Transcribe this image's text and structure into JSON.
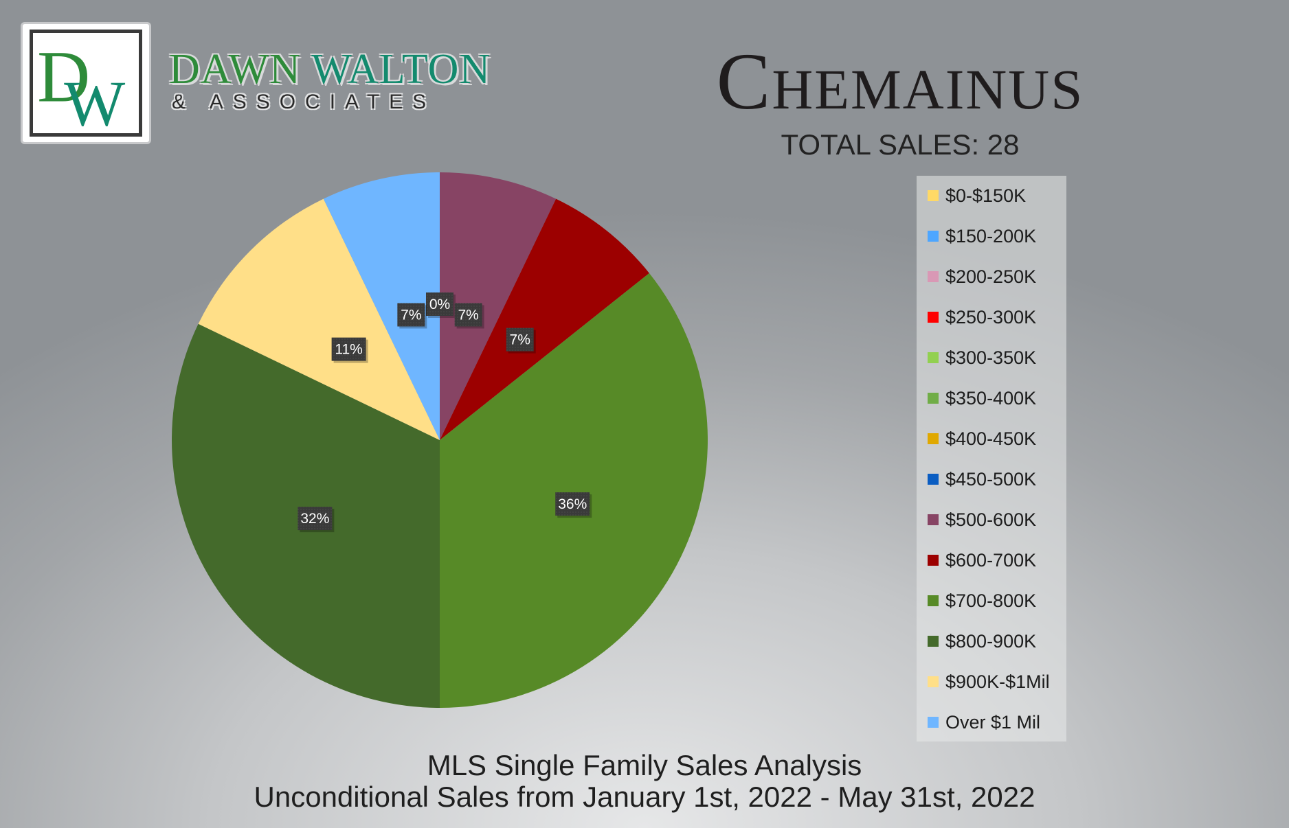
{
  "brand": {
    "logo_text": "DW",
    "name_part1": "DAWN",
    "name_part2": "WALTON",
    "subtitle": "& ASSOCIATES"
  },
  "title": "Chemainus",
  "total_sales_text": "TOTAL SALES: 28",
  "footer": {
    "line1": "MLS Single Family Sales Analysis",
    "line2": "Unconditional Sales from January 1st, 2022 - May 31st, 2022"
  },
  "chart_data": {
    "type": "pie",
    "title": "Chemainus",
    "total_sales": 28,
    "categories": [
      "$0-$150K",
      "$150-200K",
      "$200-250K",
      "$250-300K",
      "$300-350K",
      "$350-400K",
      "$400-450K",
      "$450-500K",
      "$500-600K",
      "$600-700K",
      "$700-800K",
      "$800-900K",
      "$900K-$1Mil",
      "Over $1 Mil"
    ],
    "values": [
      0,
      0,
      0,
      0,
      0,
      0,
      0,
      0,
      2,
      2,
      10,
      9,
      3,
      2
    ],
    "percent_labels": [
      "",
      "",
      "",
      "",
      "",
      "",
      "",
      "0%",
      "7%",
      "7%",
      "36%",
      "32%",
      "11%",
      "7%"
    ],
    "colors": [
      "#ffd966",
      "#4da6ff",
      "#d998b5",
      "#ff0000",
      "#92d050",
      "#70ad47",
      "#e0a800",
      "#0a5dc2",
      "#874464",
      "#9c0000",
      "#578a27",
      "#446a2b",
      "#ffdf88",
      "#6fb6ff"
    ],
    "legend_position": "right"
  }
}
